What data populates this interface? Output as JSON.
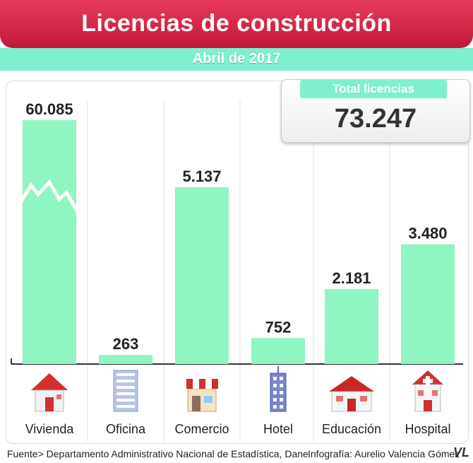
{
  "header": {
    "title": "Licencias de construcción",
    "subtitle": "Abril de 2017",
    "colors": {
      "banner": "#d62443",
      "band": "#7ef0cf",
      "bar": "#8ff5c2"
    }
  },
  "total": {
    "label": "Total licencias",
    "value": "73.247"
  },
  "chart_data": {
    "type": "bar",
    "categories": [
      "Vivienda",
      "Oficina",
      "Comercio",
      "Hotel",
      "Educación",
      "Hospital"
    ],
    "values": [
      60085,
      263,
      5137,
      752,
      2181,
      3480
    ],
    "value_labels": [
      "60.085",
      "263",
      "5.137",
      "752",
      "2.181",
      "3.480"
    ],
    "title": "Licencias de construcción",
    "subtitle": "Abril de 2017",
    "xlabel": "",
    "ylabel": "",
    "ylim": [
      0,
      6000
    ],
    "broken_axis": true,
    "grid": false,
    "icons": [
      "house-icon",
      "office-building-icon",
      "shop-icon",
      "hotel-tower-icon",
      "school-icon",
      "hospital-icon"
    ]
  },
  "footer": {
    "source": "Fuente> Departamento Administrativo Nacional de Estadística, Dane",
    "credit": "Infografía: Aurelio Valencia Gómez",
    "logo": "VL"
  }
}
